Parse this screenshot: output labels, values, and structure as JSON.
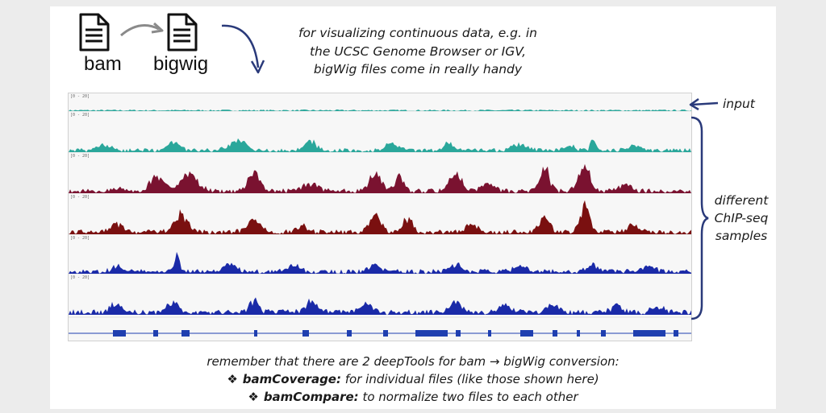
{
  "files": {
    "bam": "bam",
    "bigwig": "bigwig"
  },
  "caption": [
    "for visualizing continuous data, e.g. in",
    "the UCSC Genome Browser or IGV,",
    "bigWig files come in really handy"
  ],
  "track_range_label": "[0 - 20]",
  "labels": {
    "input": "input",
    "samples": [
      "different",
      "ChIP-seq",
      "samples"
    ]
  },
  "notes": {
    "intro": "remember that there are 2 deepTools for bam → bigWig conversion:",
    "tools": [
      {
        "name": "bamCoverage:",
        "desc": " for individual files (like those shown here)"
      },
      {
        "name": "bamCompare:",
        "desc": " to normalize two files to each other"
      }
    ]
  },
  "colors": {
    "input": "#2aa79b",
    "chip_teal": "#2aa79b",
    "chip_maroon": "#7a1230",
    "chip_darkred": "#7a1010",
    "chip_blue": "#1a2aa8",
    "gene": "#1f3fb0"
  },
  "icons": [
    "document-icon",
    "curved-arrow-icon",
    "curved-down-arrow-icon",
    "left-arrow-icon",
    "brace-icon"
  ]
}
